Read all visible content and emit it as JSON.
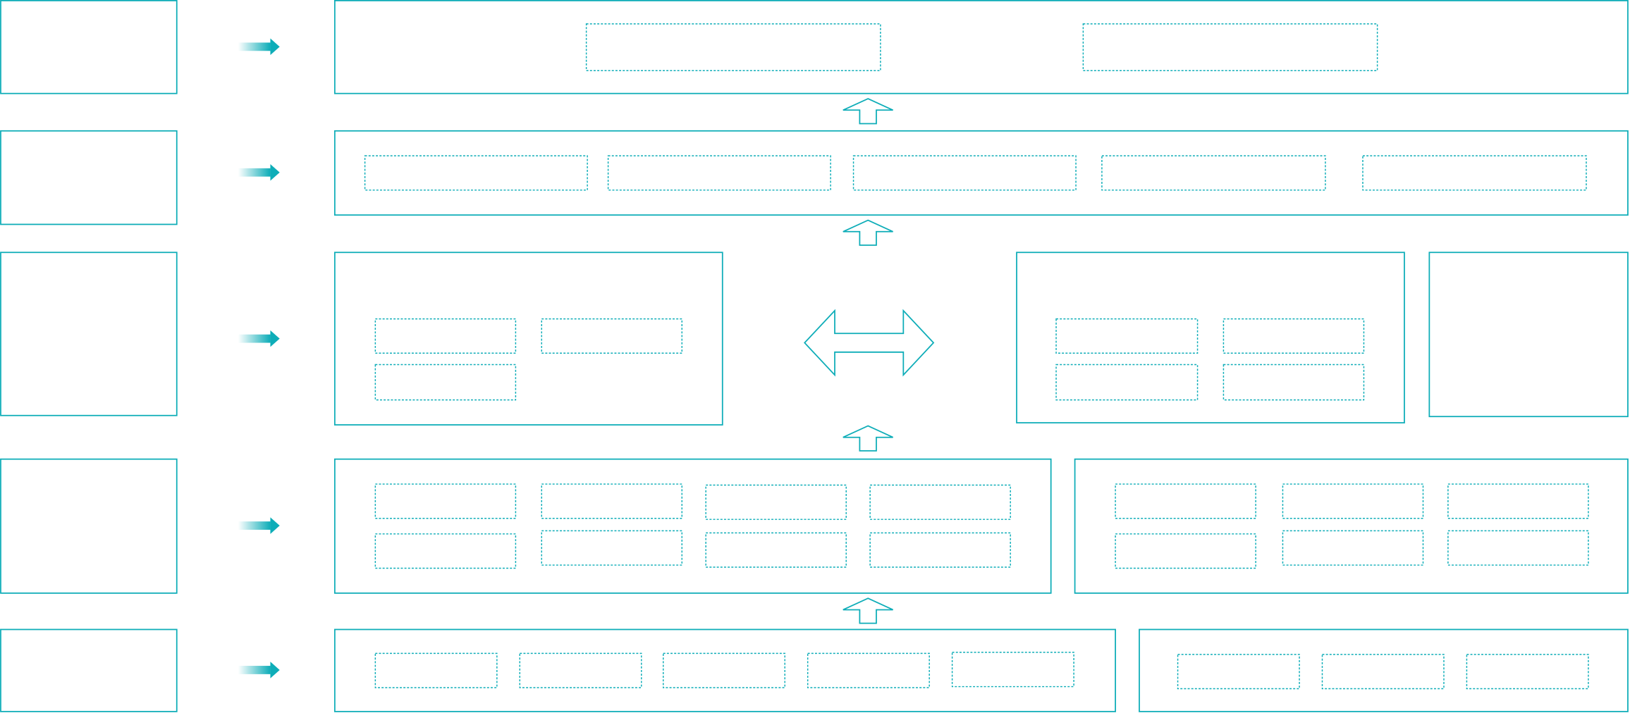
{
  "diagram": {
    "accent_color": "#0eadb8",
    "background_color": "#ffffff",
    "labels": []
  }
}
